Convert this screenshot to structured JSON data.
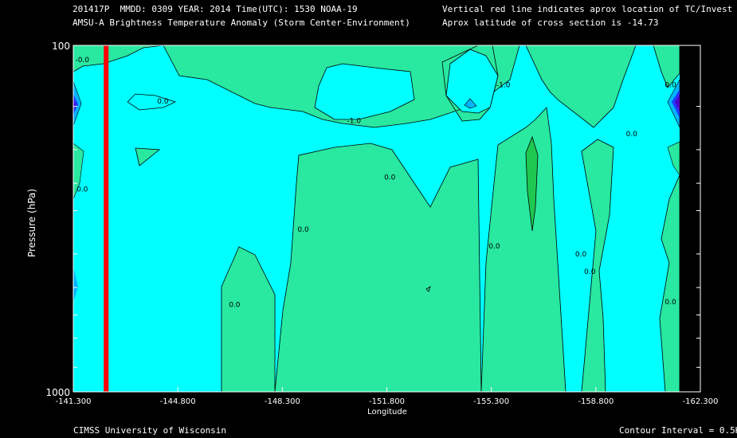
{
  "header": {
    "line1_left": "201417P  MMDD: 0309 YEAR: 2014 Time(UTC): 1530 NOAA-19",
    "line2_left": "AMSU-A Brightness Temperature Anomaly (Storm Center-Environment)",
    "line1_right": "Vertical red line indicates aprox location of TC/Invest",
    "line2_right": "Aprox latitude of cross section is -14.73"
  },
  "footer": {
    "left": "CIMSS University of Wisconsin",
    "right": "Contour Interval = 0.5K"
  },
  "colors": {
    "background": "#000000",
    "level_pos": "#29e8a0",
    "level_zero": "#00ffff",
    "level_neg1": "#00b4ff",
    "level_neg2": "#1e3cff",
    "level_neg3": "#5000c8",
    "green_core": "#1ec850",
    "tc_line": "#ff0000",
    "contour": "#000000",
    "axis": "#ffffff"
  },
  "chart_data": {
    "type": "heatmap",
    "title": "AMSU-A Brightness Temperature Anomaly (Storm Center-Environment)",
    "xlabel": "Longitude",
    "ylabel": "Pressure (hPa)",
    "x_ticks": [
      "-141.300",
      "-144.800",
      "-148.300",
      "-151.800",
      "-155.300",
      "-158.800",
      "-162.300"
    ],
    "x_tick_values": [
      -141.3,
      -144.8,
      -148.3,
      -151.8,
      -155.3,
      -158.8,
      -162.3
    ],
    "xlim": [
      -141.3,
      -162.3
    ],
    "y_ticks": [
      "100",
      "1000"
    ],
    "ylim": [
      1000,
      100
    ],
    "y_scale": "log",
    "y_minor_ticks": [
      150,
      200,
      250,
      300,
      400,
      500,
      600,
      700,
      850
    ],
    "tc_longitude": -142.4,
    "contour_interval": 0.5,
    "contour_labels": [
      {
        "text": "-0.0",
        "lon": -141.6,
        "p": 110
      },
      {
        "text": "0.0",
        "lon": -144.3,
        "p": 145
      },
      {
        "text": "-1.0",
        "lon": -150.7,
        "p": 165
      },
      {
        "text": "-1.0",
        "lon": -155.7,
        "p": 130
      },
      {
        "text": "0.0",
        "lon": -141.6,
        "p": 260
      },
      {
        "text": "0.0",
        "lon": -151.9,
        "p": 240
      },
      {
        "text": "0.0",
        "lon": -149.0,
        "p": 340
      },
      {
        "text": "0.0",
        "lon": -146.7,
        "p": 560
      },
      {
        "text": "0.0",
        "lon": -155.4,
        "p": 380
      },
      {
        "text": "0.0",
        "lon": -158.3,
        "p": 400
      },
      {
        "text": "0.0",
        "lon": -158.6,
        "p": 450
      },
      {
        "text": "0.0",
        "lon": -160.0,
        "p": 180
      },
      {
        "text": "0.0",
        "lon": -161.3,
        "p": 130
      },
      {
        "text": "0.0",
        "lon": -161.3,
        "p": 550
      }
    ]
  }
}
